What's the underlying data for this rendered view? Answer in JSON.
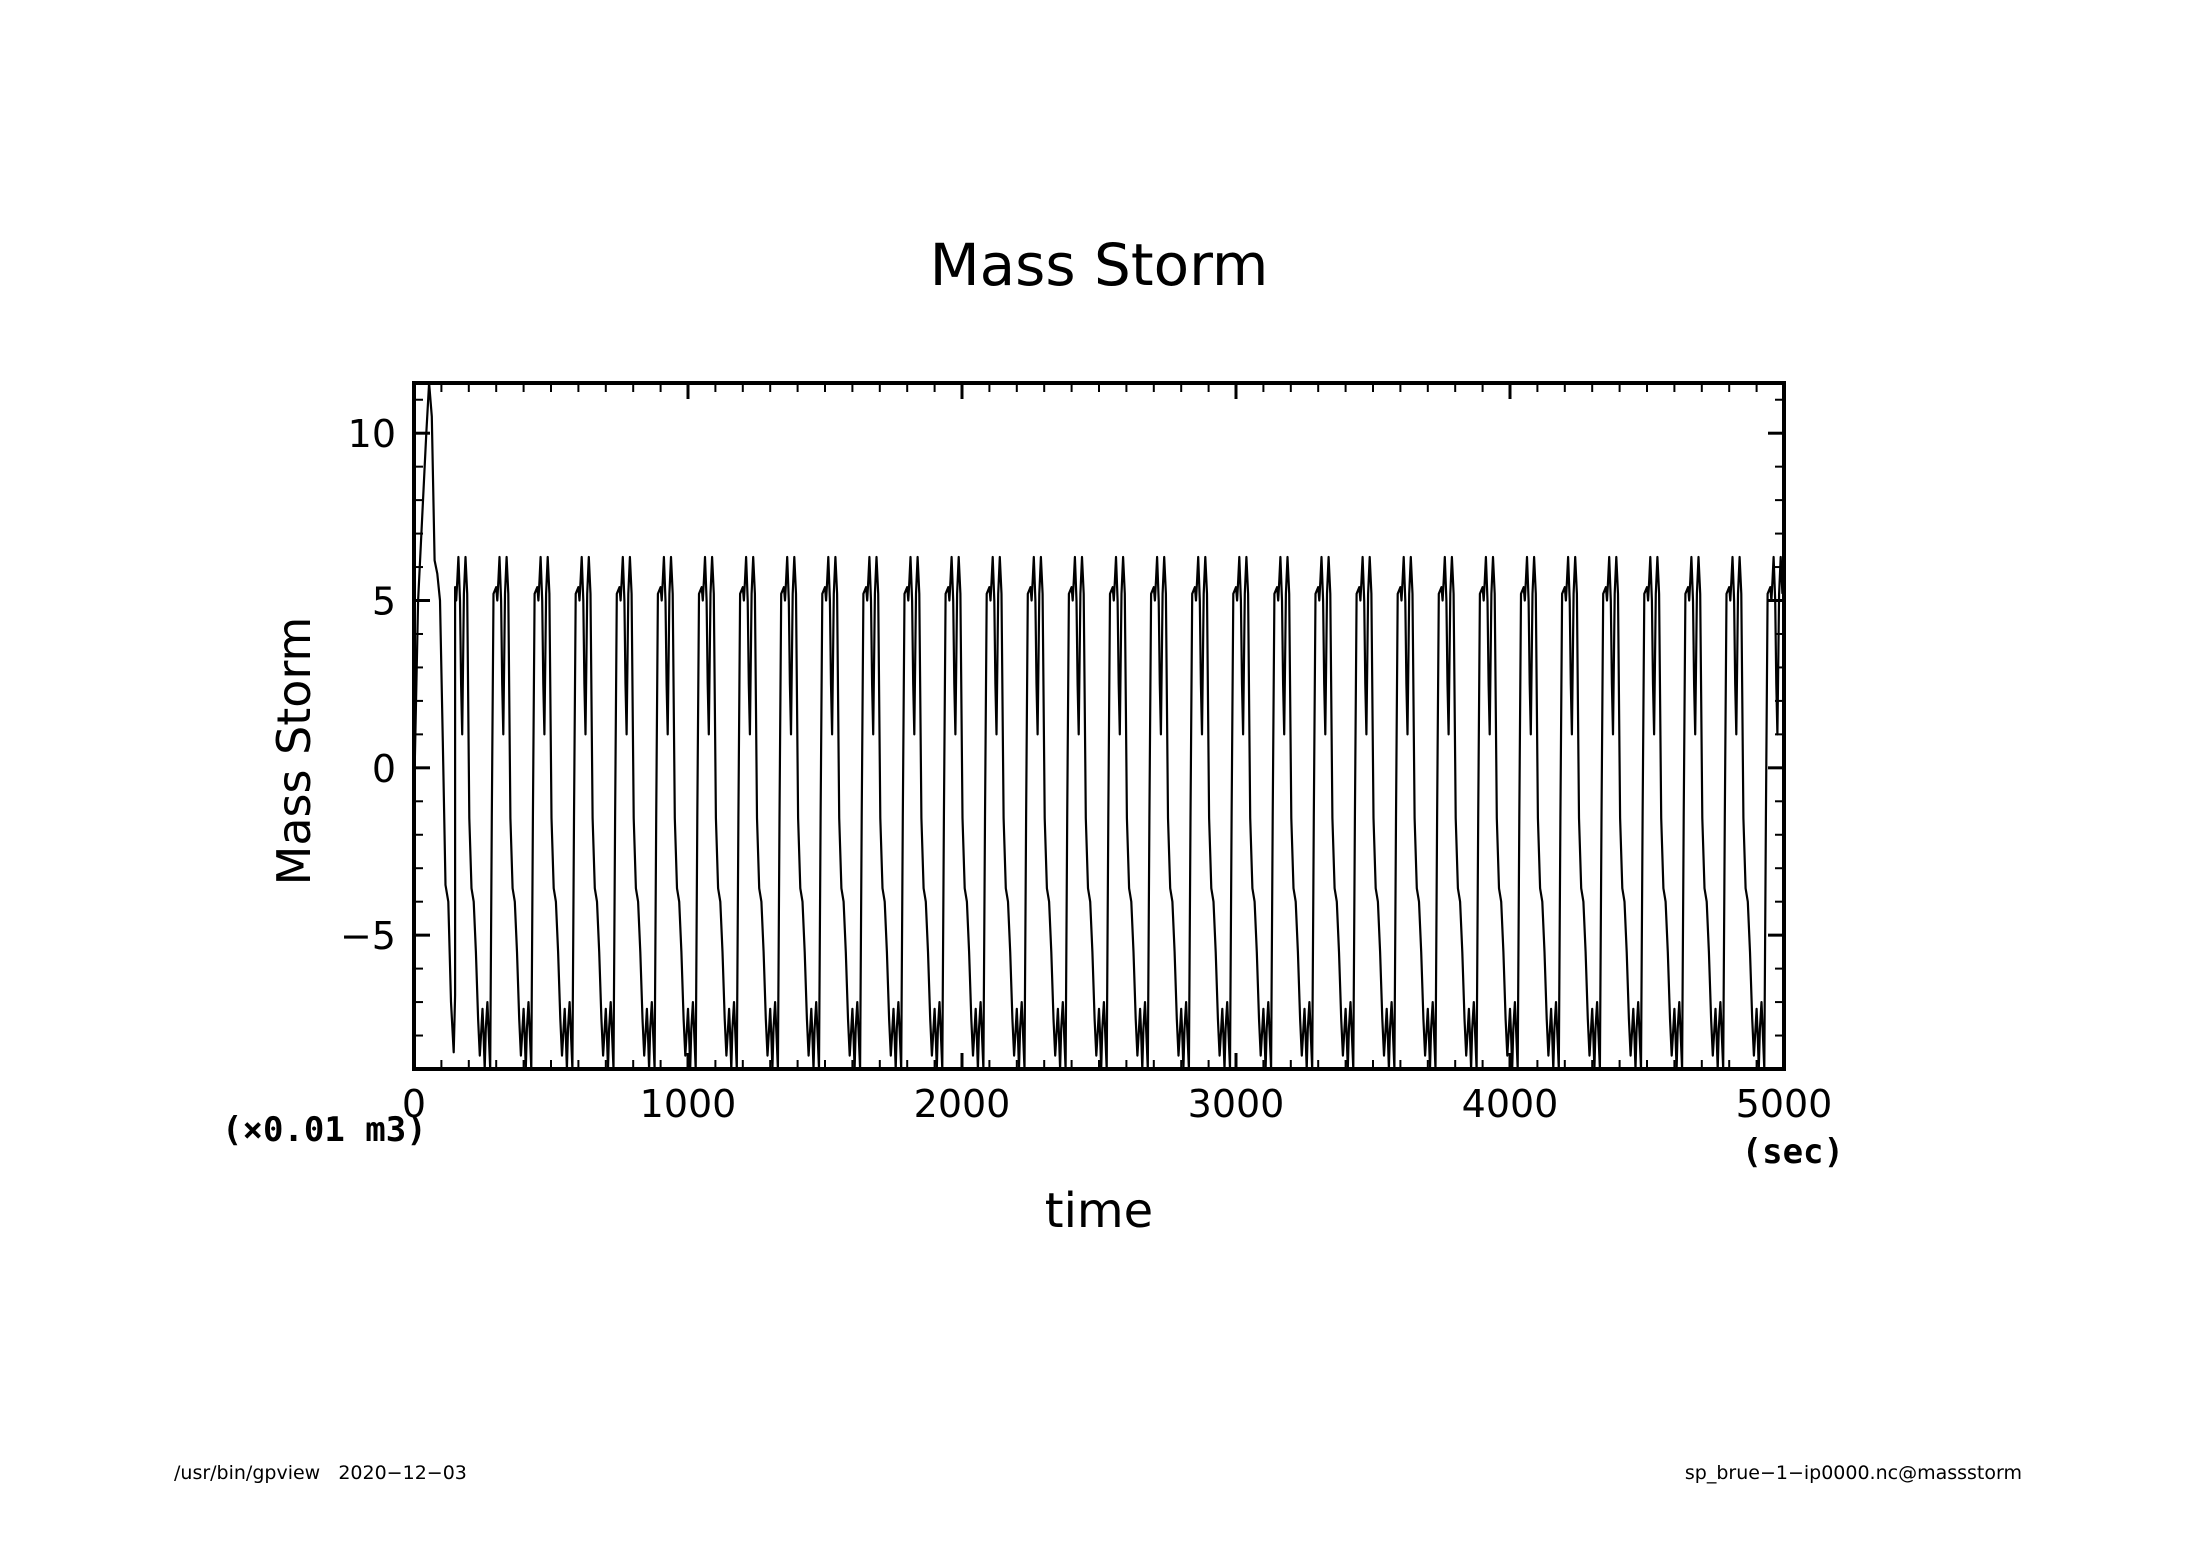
{
  "chart_data": {
    "type": "line",
    "title": "Mass Storm",
    "xlabel": "time",
    "ylabel": "Mass Storm",
    "x_unit": "(sec)",
    "y_unit": "(×0.01 m3)",
    "xlim": [
      0,
      5000
    ],
    "ylim": [
      -9,
      11.5
    ],
    "x_ticks": [
      0,
      1000,
      2000,
      3000,
      4000,
      5000
    ],
    "x_tick_labels": [
      "0",
      "1000",
      "2000",
      "3000",
      "4000",
      "5000"
    ],
    "y_ticks": [
      -5,
      0,
      5,
      10
    ],
    "y_tick_labels": [
      "−5",
      "0",
      "5",
      "10"
    ],
    "grid": false,
    "series": [
      {
        "period_sec": 150,
        "waveform_one_period": [
          [
            0,
            5.4
          ],
          [
            4,
            5.0
          ],
          [
            8,
            5.6
          ],
          [
            12,
            6.3
          ],
          [
            18,
            5.0
          ],
          [
            22,
            2.5
          ],
          [
            26,
            1.0
          ],
          [
            32,
            5.2
          ],
          [
            38,
            6.3
          ],
          [
            44,
            5.2
          ],
          [
            52,
            -1.5
          ],
          [
            60,
            -3.6
          ],
          [
            68,
            -4.0
          ],
          [
            76,
            -5.5
          ],
          [
            84,
            -7.5
          ],
          [
            90,
            -8.6
          ],
          [
            96,
            -7.8
          ],
          [
            100,
            -7.2
          ],
          [
            104,
            -8.0
          ],
          [
            108,
            -9.0
          ],
          [
            112,
            -7.8
          ],
          [
            118,
            -7.0
          ],
          [
            124,
            -8.2
          ],
          [
            128,
            -9.0
          ],
          [
            134,
            -1.5
          ],
          [
            140,
            5.2
          ],
          [
            150,
            5.4
          ]
        ],
        "transient_start": [
          [
            0,
            -1.0
          ],
          [
            15,
            5.0
          ],
          [
            30,
            7.5
          ],
          [
            45,
            10.0
          ],
          [
            55,
            11.5
          ],
          [
            65,
            10.5
          ],
          [
            75,
            6.2
          ],
          [
            85,
            5.8
          ],
          [
            95,
            5.0
          ],
          [
            105,
            0.8
          ],
          [
            115,
            -3.5
          ],
          [
            125,
            -4.0
          ],
          [
            135,
            -7.0
          ],
          [
            145,
            -8.5
          ],
          [
            150,
            -6.8
          ]
        ]
      }
    ],
    "footer_left": "/usr/bin/gpview   2020−12−03",
    "footer_right": "sp_brue−1−ip0000.nc@massstorm"
  }
}
